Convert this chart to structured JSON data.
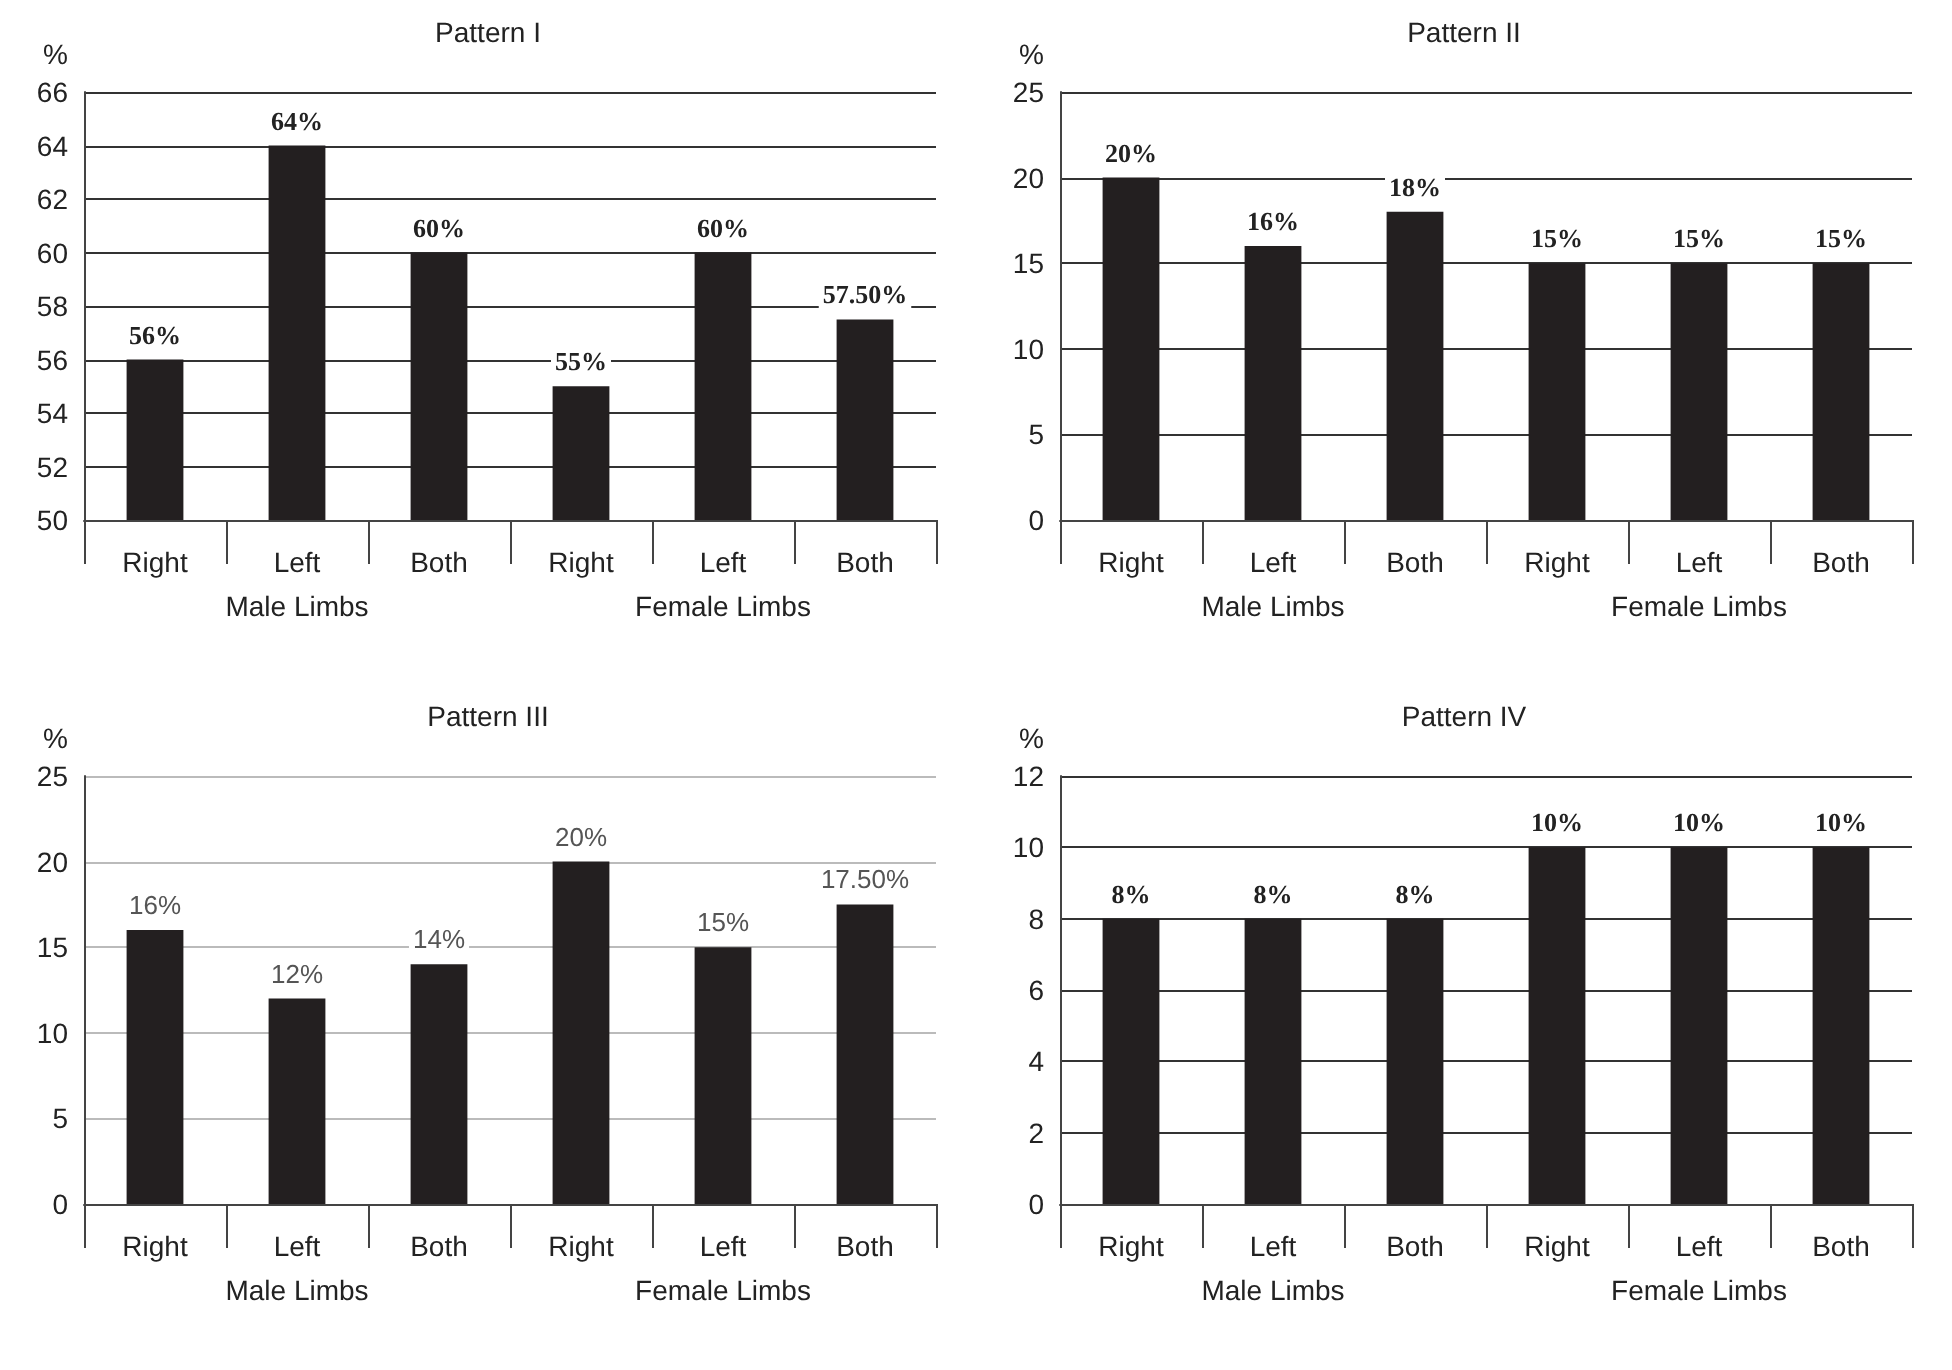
{
  "chart_data": [
    {
      "type": "bar",
      "title": "Pattern I",
      "ylabel": "%",
      "categories": [
        "Right",
        "Left",
        "Both",
        "Right",
        "Left",
        "Both"
      ],
      "values": [
        56,
        64,
        60,
        55,
        60,
        57.5
      ],
      "value_labels": [
        "56%",
        "64%",
        "60%",
        "55%",
        "60%",
        "57.50%"
      ],
      "color": "#231f20",
      "ylim": [
        50,
        66
      ],
      "yticks": [
        50,
        52,
        54,
        56,
        58,
        60,
        62,
        64,
        66
      ],
      "grid": "y",
      "annotations": [
        "Male Limbs",
        "Female Limbs"
      ]
    },
    {
      "type": "bar",
      "title": "Pattern II",
      "ylabel": "%",
      "categories": [
        "Right",
        "Left",
        "Both",
        "Right",
        "Left",
        "Both"
      ],
      "values": [
        20,
        16,
        18,
        15,
        15,
        15
      ],
      "value_labels": [
        "20%",
        "16%",
        "18%",
        "15%",
        "15%",
        "15%"
      ],
      "color": "#231f20",
      "ylim": [
        0,
        25
      ],
      "yticks": [
        0,
        5,
        10,
        15,
        20,
        25
      ],
      "grid": "y",
      "annotations": [
        "Male Limbs",
        "Female Limbs"
      ]
    },
    {
      "type": "bar",
      "title": "Pattern III",
      "ylabel": "%",
      "categories": [
        "Right",
        "Left",
        "Both",
        "Right",
        "Left",
        "Both"
      ],
      "values": [
        16,
        12,
        14,
        20,
        15,
        17.5
      ],
      "value_labels": [
        "16%",
        "12%",
        "14%",
        "20%",
        "15%",
        "17.50%"
      ],
      "color": "#231f20",
      "ylim": [
        0,
        25
      ],
      "yticks": [
        0,
        5,
        10,
        15,
        20,
        25
      ],
      "grid": "y",
      "annotations": [
        "Male Limbs",
        "Female Limbs"
      ]
    },
    {
      "type": "bar",
      "title": "Pattern IV",
      "ylabel": "%",
      "categories": [
        "Right",
        "Left",
        "Both",
        "Right",
        "Left",
        "Both"
      ],
      "values": [
        8,
        8,
        8,
        10,
        10,
        10
      ],
      "value_labels": [
        "8%",
        "8%",
        "8%",
        "10%",
        "10%",
        "10%"
      ],
      "color": "#231f20",
      "ylim": [
        0,
        12
      ],
      "yticks": [
        0,
        2,
        4,
        6,
        8,
        10,
        12
      ],
      "grid": "y",
      "annotations": [
        "Male Limbs",
        "Female Limbs"
      ]
    }
  ]
}
